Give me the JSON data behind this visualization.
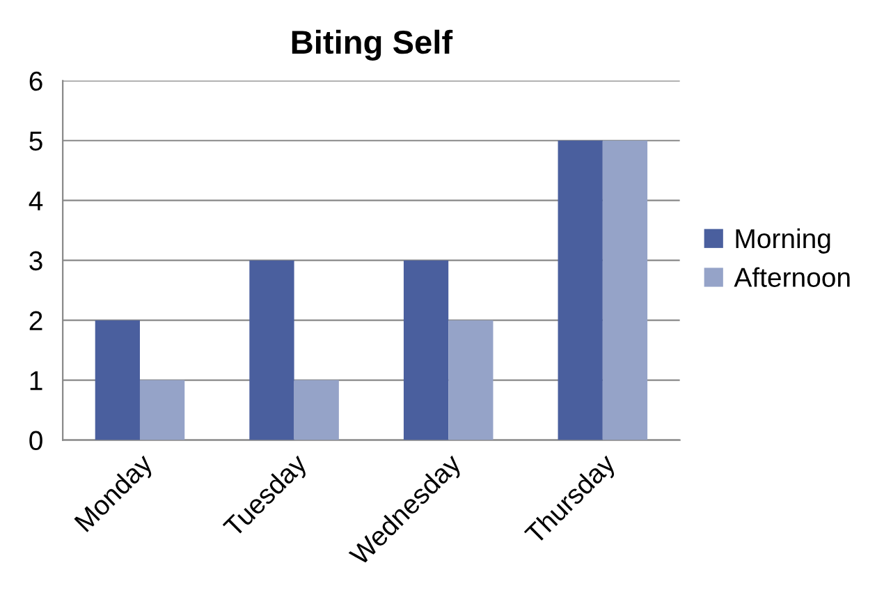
{
  "chart_data": {
    "type": "bar",
    "title": "Biting Self",
    "categories": [
      "Monday",
      "Tuesday",
      "Wednesday",
      "Thursday"
    ],
    "series": [
      {
        "name": "Morning",
        "color": "#4a5f9e",
        "values": [
          2,
          3,
          3,
          5
        ]
      },
      {
        "name": "Afternoon",
        "color": "#95a3c8",
        "values": [
          1,
          1,
          2,
          5
        ]
      }
    ],
    "ylim": [
      0,
      6
    ],
    "yticks": [
      0,
      1,
      2,
      3,
      4,
      5,
      6
    ],
    "grid": "y",
    "legend": "right"
  }
}
